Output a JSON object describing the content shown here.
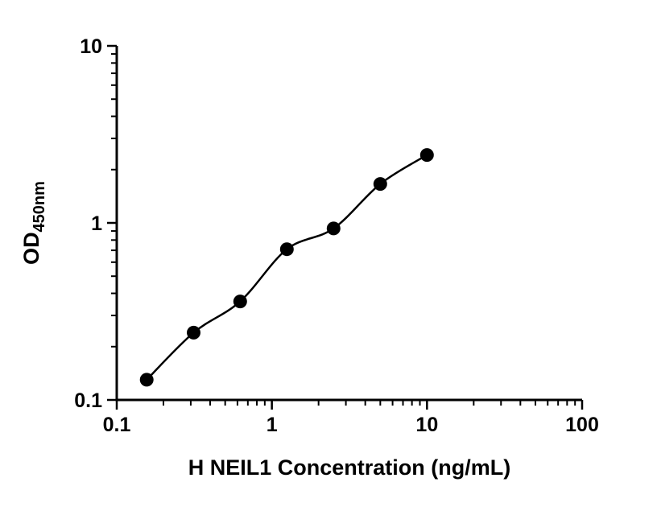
{
  "chart_data": {
    "type": "scatter",
    "title": "",
    "xlabel": "H NEIL1 Concentration (ng/mL)",
    "ylabel": "OD",
    "ylabel_subscript": "450nm",
    "x_scale": "log",
    "y_scale": "log",
    "xlim": [
      0.1,
      100
    ],
    "ylim": [
      0.1,
      10
    ],
    "x_ticks": [
      0.1,
      1,
      10,
      100
    ],
    "x_tick_labels": [
      "0.1",
      "1",
      "10",
      "100"
    ],
    "y_ticks": [
      0.1,
      1,
      10
    ],
    "y_tick_labels": [
      "0.1",
      "1",
      "10"
    ],
    "grid": false,
    "legend": false,
    "series": [
      {
        "name": "standard-curve",
        "marker": "filled-circle",
        "line": "smooth-fit",
        "color": "#000000",
        "x": [
          0.156,
          0.313,
          0.625,
          1.25,
          2.5,
          5,
          10
        ],
        "y": [
          0.13,
          0.24,
          0.36,
          0.71,
          0.93,
          1.66,
          2.42
        ]
      }
    ]
  },
  "colors": {
    "axis": "#000000",
    "marker": "#000000",
    "background": "#ffffff"
  }
}
